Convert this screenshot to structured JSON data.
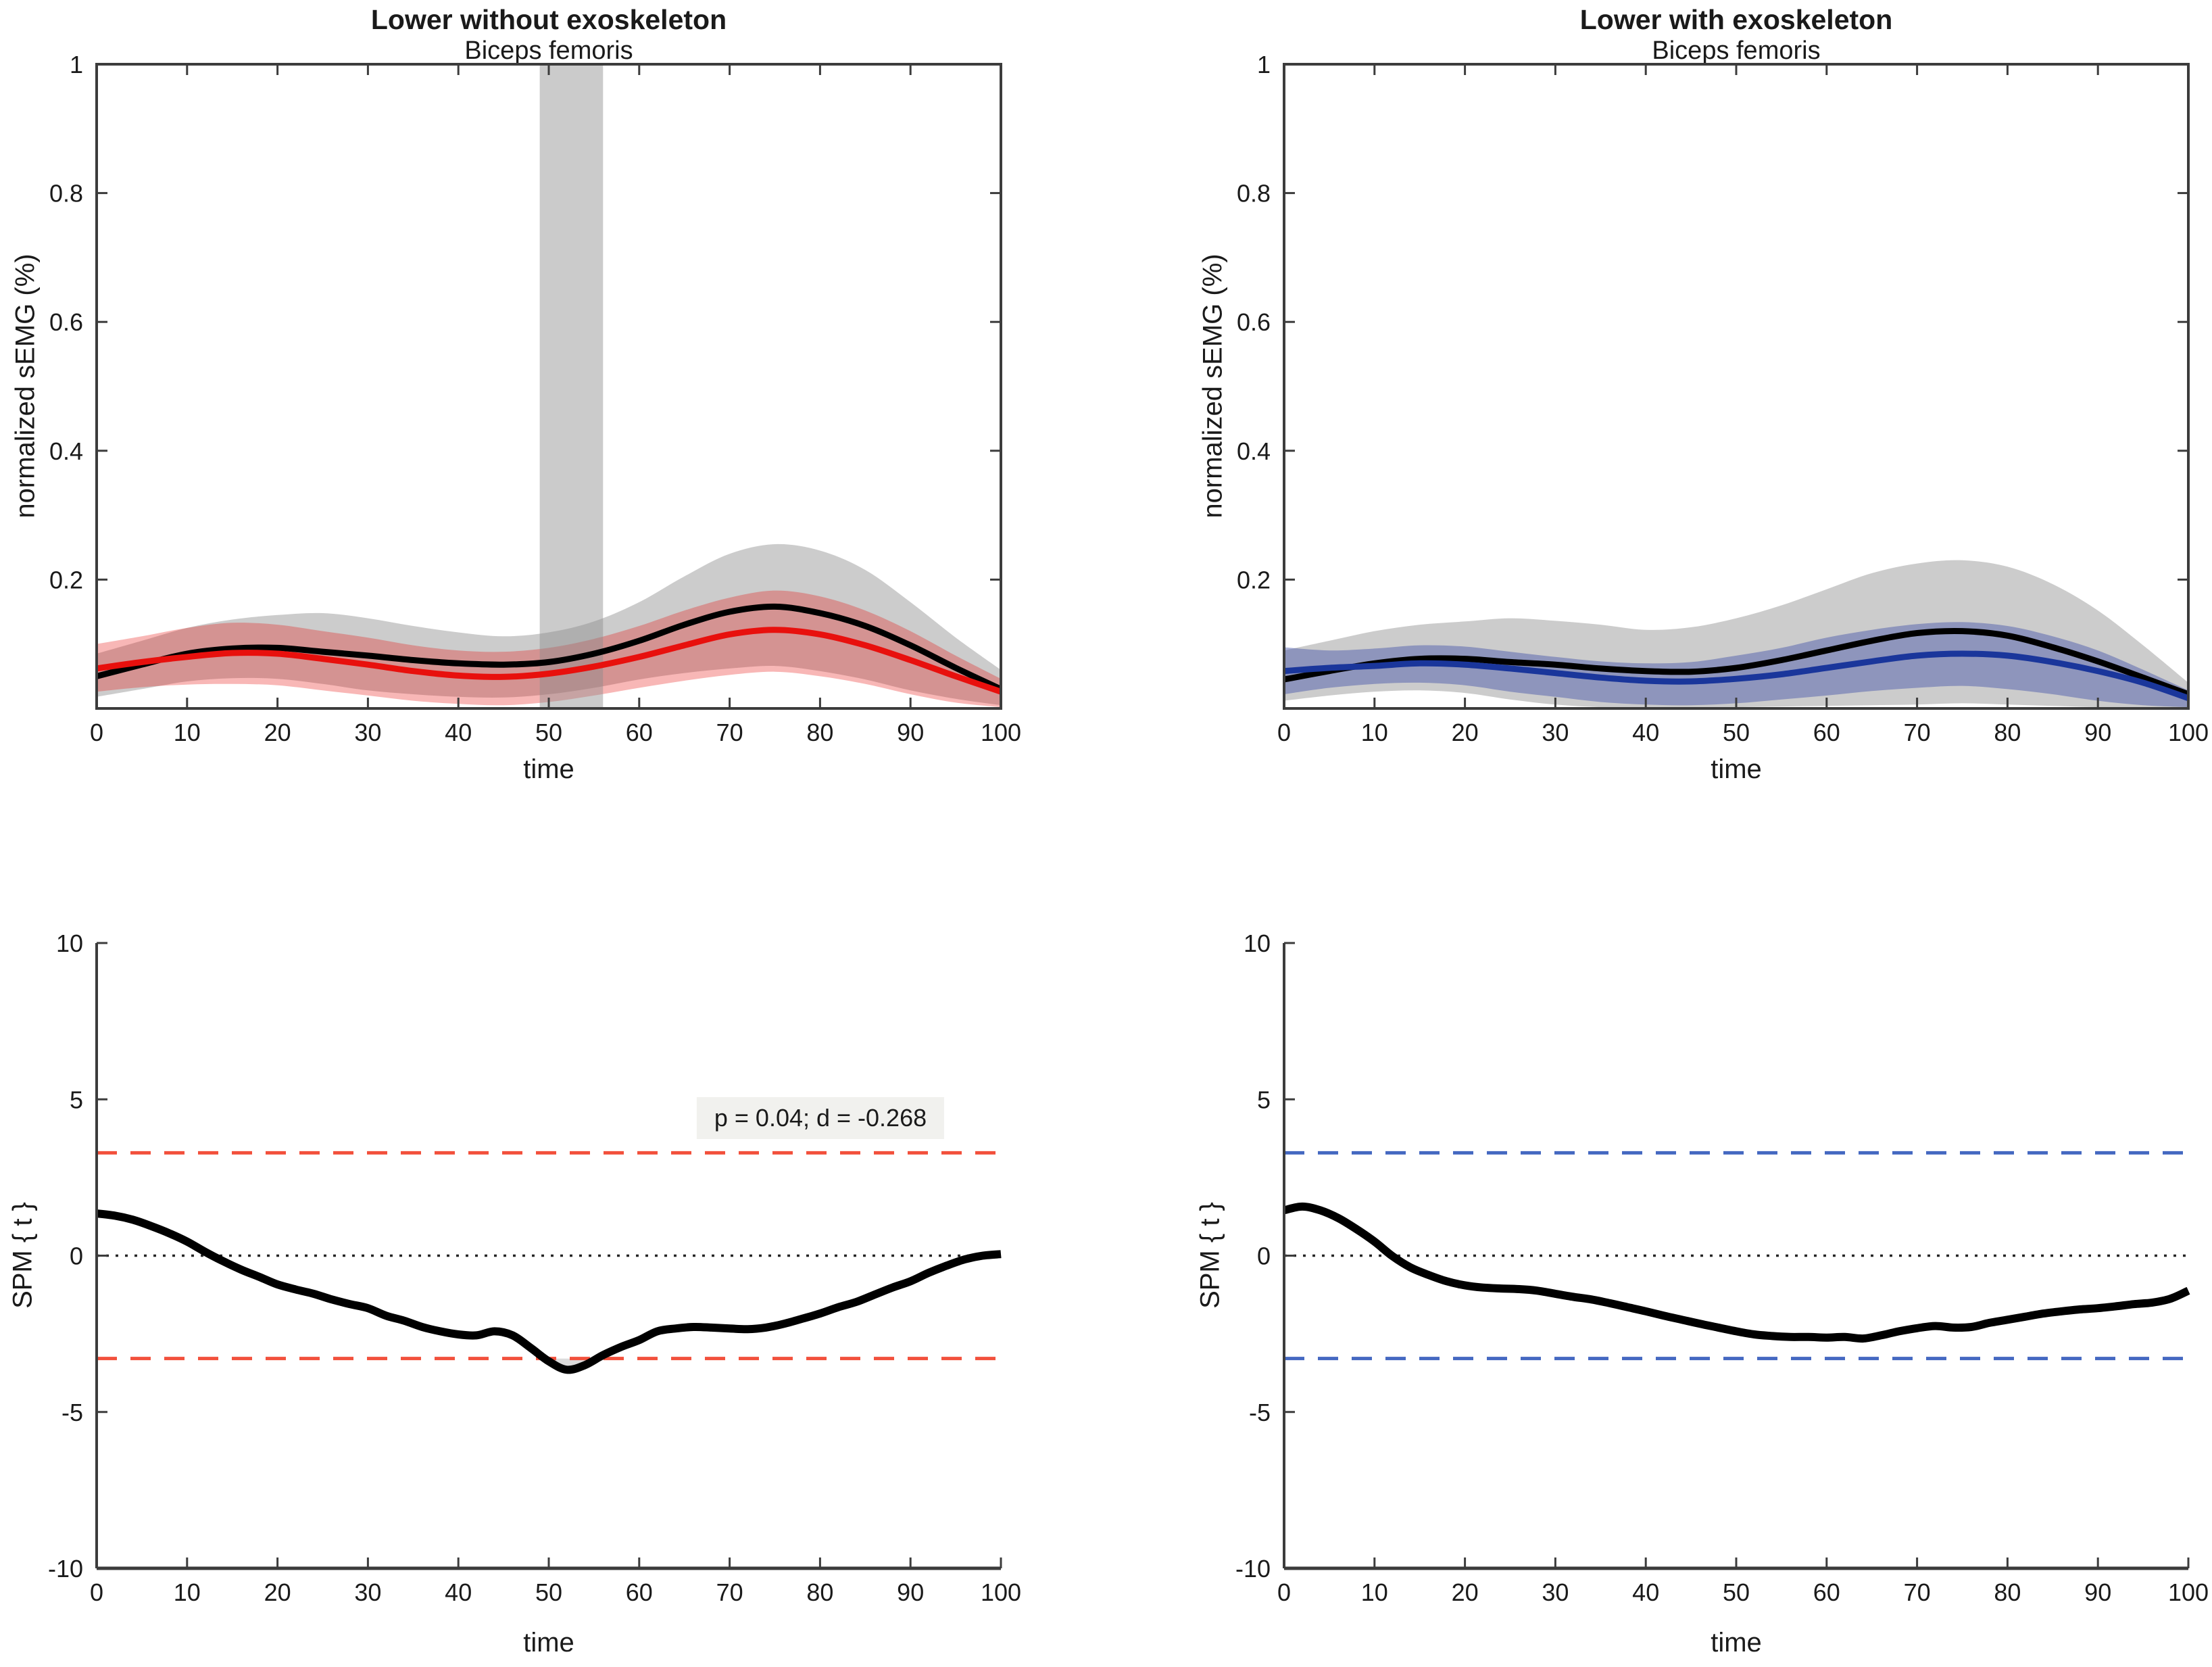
{
  "page": {
    "background": "#ffffff"
  },
  "chart_data": [
    {
      "id": "top-left",
      "type": "line",
      "title": "Lower without exoskeleton",
      "subtitle": "Biceps femoris",
      "xlabel": "time",
      "ylabel": "normalized sEMG (%)",
      "xlim": [
        0,
        100
      ],
      "ylim": [
        0,
        1
      ],
      "xticks": [
        0,
        10,
        20,
        30,
        40,
        50,
        60,
        70,
        80,
        90,
        100
      ],
      "yticks": [
        0.2,
        0.4,
        0.6,
        0.8,
        1
      ],
      "box": true,
      "x": [
        0,
        5,
        10,
        15,
        20,
        25,
        30,
        35,
        40,
        45,
        50,
        55,
        60,
        65,
        70,
        75,
        80,
        85,
        90,
        95,
        100
      ],
      "series": [
        {
          "name": "black mean curve",
          "color": "#000000",
          "width": 9,
          "values": [
            0.05,
            0.068,
            0.085,
            0.093,
            0.094,
            0.088,
            0.082,
            0.075,
            0.07,
            0.068,
            0.072,
            0.085,
            0.105,
            0.13,
            0.15,
            0.158,
            0.148,
            0.128,
            0.098,
            0.063,
            0.03
          ],
          "band": {
            "upper": [
              0.085,
              0.105,
              0.125,
              0.138,
              0.145,
              0.148,
              0.14,
              0.128,
              0.118,
              0.112,
              0.118,
              0.135,
              0.165,
              0.205,
              0.24,
              0.255,
              0.245,
              0.215,
              0.165,
              0.11,
              0.06
            ],
            "lower": [
              0.018,
              0.03,
              0.042,
              0.047,
              0.046,
              0.038,
              0.028,
              0.022,
              0.018,
              0.017,
              0.022,
              0.032,
              0.045,
              0.055,
              0.062,
              0.066,
              0.058,
              0.045,
              0.028,
              0.015,
              0.005
            ],
            "color": "#8c8c8c",
            "opacity": 0.44
          }
        },
        {
          "name": "red mean curve",
          "color": "#e8100d",
          "width": 9,
          "values": [
            0.062,
            0.072,
            0.08,
            0.086,
            0.085,
            0.077,
            0.068,
            0.058,
            0.051,
            0.049,
            0.054,
            0.065,
            0.08,
            0.098,
            0.115,
            0.122,
            0.115,
            0.098,
            0.075,
            0.05,
            0.026
          ],
          "band": {
            "upper": [
              0.1,
              0.112,
              0.125,
              0.133,
              0.13,
              0.12,
              0.11,
              0.098,
              0.09,
              0.088,
              0.094,
              0.108,
              0.128,
              0.152,
              0.172,
              0.183,
              0.174,
              0.152,
              0.12,
              0.082,
              0.046
            ],
            "lower": [
              0.026,
              0.033,
              0.037,
              0.038,
              0.036,
              0.028,
              0.02,
              0.012,
              0.007,
              0.005,
              0.01,
              0.02,
              0.032,
              0.043,
              0.052,
              0.057,
              0.05,
              0.038,
              0.022,
              0.009,
              0.002
            ],
            "color": "#e8100d",
            "opacity": 0.3
          }
        }
      ],
      "significance_band": {
        "x0": 49,
        "x1": 56,
        "color": "#8c8c8c",
        "opacity": 0.45
      }
    },
    {
      "id": "top-right",
      "type": "line",
      "title": "Lower with exoskeleton",
      "subtitle": "Biceps femoris",
      "xlabel": "time",
      "ylabel": "normalized sEMG (%)",
      "xlim": [
        0,
        100
      ],
      "ylim": [
        0,
        1
      ],
      "xticks": [
        0,
        10,
        20,
        30,
        40,
        50,
        60,
        70,
        80,
        90,
        100
      ],
      "yticks": [
        0.2,
        0.4,
        0.6,
        0.8,
        1
      ],
      "box": true,
      "x": [
        0,
        5,
        10,
        15,
        20,
        25,
        30,
        35,
        40,
        45,
        50,
        55,
        60,
        65,
        70,
        75,
        80,
        85,
        90,
        95,
        100
      ],
      "series": [
        {
          "name": "black mean curve",
          "color": "#000000",
          "width": 9,
          "values": [
            0.045,
            0.058,
            0.07,
            0.077,
            0.077,
            0.072,
            0.068,
            0.062,
            0.058,
            0.057,
            0.063,
            0.075,
            0.09,
            0.105,
            0.117,
            0.12,
            0.113,
            0.095,
            0.073,
            0.048,
            0.022
          ],
          "band": {
            "upper": [
              0.09,
              0.105,
              0.12,
              0.13,
              0.135,
              0.14,
              0.136,
              0.13,
              0.122,
              0.126,
              0.14,
              0.16,
              0.185,
              0.21,
              0.225,
              0.23,
              0.22,
              0.193,
              0.152,
              0.098,
              0.04
            ],
            "lower": [
              0.012,
              0.02,
              0.026,
              0.028,
              0.024,
              0.014,
              0.006,
              0.002,
              0.001,
              0.001,
              0.002,
              0.003,
              0.004,
              0.005,
              0.006,
              0.008,
              0.006,
              0.004,
              0.002,
              0.001,
              0.0
            ],
            "color": "#8c8c8c",
            "opacity": 0.44
          }
        },
        {
          "name": "blue mean curve",
          "color": "#1a369b",
          "width": 9,
          "values": [
            0.058,
            0.063,
            0.066,
            0.07,
            0.068,
            0.062,
            0.055,
            0.048,
            0.043,
            0.042,
            0.046,
            0.053,
            0.063,
            0.073,
            0.082,
            0.085,
            0.082,
            0.072,
            0.058,
            0.04,
            0.016
          ],
          "band": {
            "upper": [
              0.095,
              0.09,
              0.093,
              0.098,
              0.096,
              0.088,
              0.08,
              0.073,
              0.07,
              0.072,
              0.082,
              0.094,
              0.11,
              0.122,
              0.131,
              0.134,
              0.128,
              0.112,
              0.09,
              0.06,
              0.028
            ],
            "lower": [
              0.022,
              0.032,
              0.038,
              0.04,
              0.036,
              0.026,
              0.018,
              0.01,
              0.006,
              0.005,
              0.008,
              0.014,
              0.02,
              0.027,
              0.032,
              0.035,
              0.03,
              0.022,
              0.012,
              0.005,
              0.002
            ],
            "color": "#3a49a8",
            "opacity": 0.42
          }
        }
      ]
    },
    {
      "id": "bottom-left",
      "type": "line",
      "xlabel": "time",
      "ylabel": "SPM { t }",
      "xlim": [
        0,
        100
      ],
      "ylim": [
        -10,
        10
      ],
      "xticks": [
        0,
        10,
        20,
        30,
        40,
        50,
        60,
        70,
        80,
        90,
        100
      ],
      "yticks": [
        -10,
        -5,
        0,
        5,
        10
      ],
      "box": false,
      "x": [
        0,
        2,
        4,
        6,
        8,
        10,
        12,
        14,
        16,
        18,
        20,
        22,
        24,
        26,
        28,
        30,
        32,
        34,
        36,
        38,
        40,
        42,
        44,
        46,
        48,
        50,
        52,
        54,
        56,
        58,
        60,
        62,
        64,
        66,
        68,
        70,
        72,
        74,
        76,
        78,
        80,
        82,
        84,
        86,
        88,
        90,
        92,
        94,
        96,
        98,
        100
      ],
      "series": [
        {
          "name": "SPM t statistic",
          "color": "#000000",
          "width": 12,
          "values": [
            1.35,
            1.28,
            1.15,
            0.95,
            0.72,
            0.45,
            0.12,
            -0.18,
            -0.45,
            -0.68,
            -0.92,
            -1.08,
            -1.22,
            -1.4,
            -1.55,
            -1.68,
            -1.92,
            -2.08,
            -2.28,
            -2.42,
            -2.52,
            -2.55,
            -2.42,
            -2.55,
            -2.95,
            -3.38,
            -3.65,
            -3.5,
            -3.18,
            -2.92,
            -2.7,
            -2.42,
            -2.33,
            -2.28,
            -2.3,
            -2.33,
            -2.35,
            -2.3,
            -2.18,
            -2.02,
            -1.85,
            -1.65,
            -1.48,
            -1.25,
            -1.02,
            -0.82,
            -0.55,
            -0.32,
            -0.12,
            0.0,
            0.05
          ]
        }
      ],
      "threshold": {
        "value": 3.29,
        "color": "#f2503c"
      },
      "zero_line": {
        "color": "#262626"
      },
      "cluster_fill": {
        "color": "#dcdcdc"
      },
      "annotation": {
        "text": "p = 0.04; d = -0.268",
        "bg": "#f1f1ee"
      }
    },
    {
      "id": "bottom-right",
      "type": "line",
      "xlabel": "time",
      "ylabel": "SPM { t }",
      "xlim": [
        0,
        100
      ],
      "ylim": [
        -10,
        10
      ],
      "xticks": [
        0,
        10,
        20,
        30,
        40,
        50,
        60,
        70,
        80,
        90,
        100
      ],
      "yticks": [
        -10,
        -5,
        0,
        5,
        10
      ],
      "box": false,
      "x": [
        0,
        2,
        4,
        6,
        8,
        10,
        12,
        14,
        16,
        18,
        20,
        22,
        24,
        26,
        28,
        30,
        32,
        34,
        36,
        38,
        40,
        42,
        44,
        46,
        48,
        50,
        52,
        54,
        56,
        58,
        60,
        62,
        64,
        66,
        68,
        70,
        72,
        74,
        76,
        78,
        80,
        82,
        84,
        86,
        88,
        90,
        92,
        94,
        96,
        98,
        100
      ],
      "series": [
        {
          "name": "SPM t statistic",
          "color": "#000000",
          "width": 12,
          "values": [
            1.45,
            1.57,
            1.45,
            1.2,
            0.85,
            0.45,
            -0.02,
            -0.38,
            -0.62,
            -0.82,
            -0.95,
            -1.02,
            -1.05,
            -1.07,
            -1.12,
            -1.22,
            -1.32,
            -1.4,
            -1.52,
            -1.65,
            -1.78,
            -1.92,
            -2.05,
            -2.18,
            -2.3,
            -2.42,
            -2.52,
            -2.57,
            -2.6,
            -2.6,
            -2.62,
            -2.6,
            -2.65,
            -2.55,
            -2.42,
            -2.32,
            -2.25,
            -2.3,
            -2.28,
            -2.15,
            -2.05,
            -1.95,
            -1.85,
            -1.78,
            -1.72,
            -1.68,
            -1.62,
            -1.55,
            -1.5,
            -1.38,
            -1.12
          ]
        }
      ],
      "threshold": {
        "value": 3.29,
        "color": "#4468c1"
      },
      "zero_line": {
        "color": "#262626"
      }
    }
  ]
}
